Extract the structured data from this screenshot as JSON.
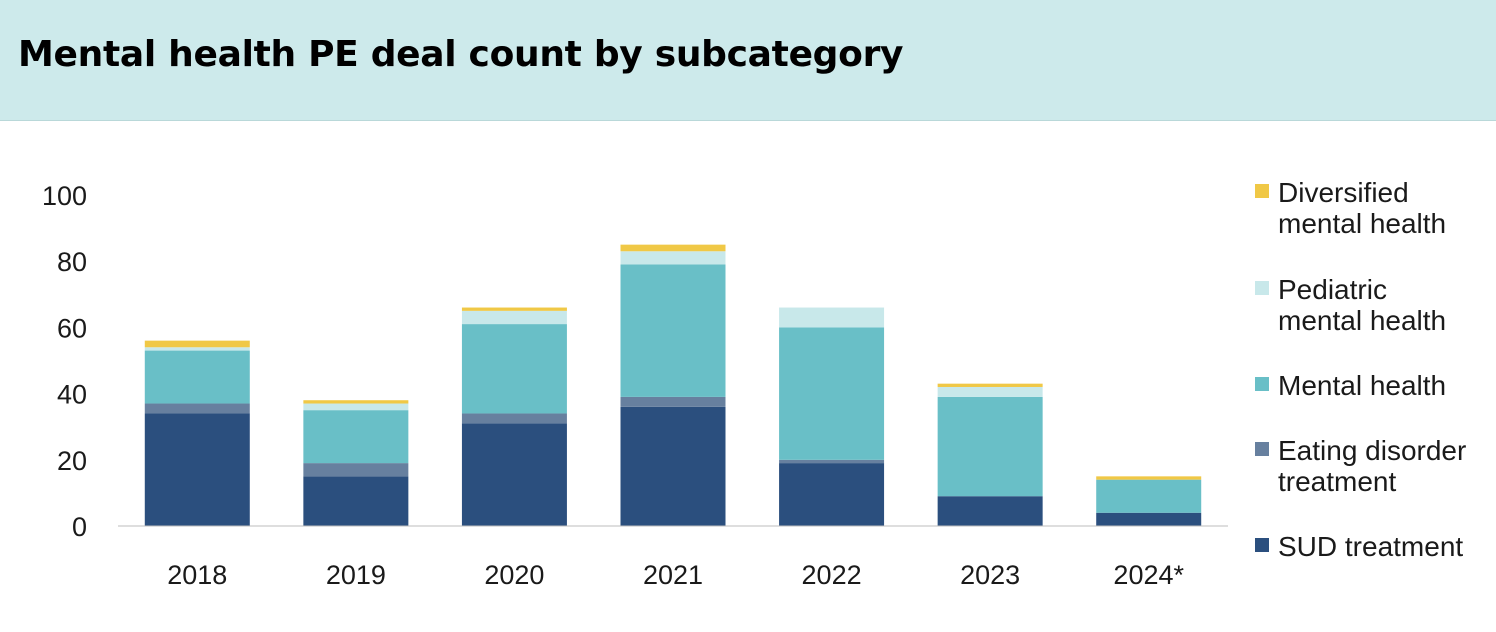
{
  "header": {
    "title": "Mental health PE deal count by subcategory"
  },
  "colors": {
    "header_bg": "#cdeaeb",
    "sud": "#2b4f7e",
    "eating": "#67809f",
    "mental": "#69bfc7",
    "pediatric": "#c8e8ea",
    "diversified": "#f0c846"
  },
  "chart_data": {
    "type": "bar",
    "stacked": true,
    "categories": [
      "2018",
      "2019",
      "2020",
      "2021",
      "2022",
      "2023",
      "2024*"
    ],
    "ylim": [
      0,
      100
    ],
    "yticks": [
      0,
      20,
      40,
      60,
      80,
      100
    ],
    "grid": false,
    "legend_position": "right",
    "series": [
      {
        "name": "SUD treatment",
        "color": "#2b4f7e",
        "values": [
          34,
          15,
          31,
          36,
          19,
          9,
          4
        ]
      },
      {
        "name": "Eating disorder treatment",
        "color": "#67809f",
        "values": [
          3,
          4,
          3,
          3,
          1,
          0,
          0
        ]
      },
      {
        "name": "Mental health",
        "color": "#69bfc7",
        "values": [
          16,
          16,
          27,
          40,
          40,
          30,
          10
        ]
      },
      {
        "name": "Pediatric mental health",
        "color": "#c8e8ea",
        "values": [
          1,
          2,
          4,
          4,
          6,
          3,
          0
        ]
      },
      {
        "name": "Diversified mental health",
        "color": "#f0c846",
        "values": [
          2,
          1,
          1,
          2,
          0,
          1,
          1
        ]
      }
    ]
  },
  "legend": [
    {
      "lines": [
        "Diversified",
        "mental health"
      ],
      "color": "#f0c846",
      "icon": "diversified-mental-health-swatch"
    },
    {
      "lines": [
        "Pediatric",
        "mental health"
      ],
      "color": "#c8e8ea",
      "icon": "pediatric-mental-health-swatch"
    },
    {
      "lines": [
        "Mental health"
      ],
      "color": "#69bfc7",
      "icon": "mental-health-swatch"
    },
    {
      "lines": [
        "Eating disorder",
        "treatment"
      ],
      "color": "#67809f",
      "icon": "eating-disorder-treatment-swatch"
    },
    {
      "lines": [
        "SUD treatment"
      ],
      "color": "#2b4f7e",
      "icon": "sud-treatment-swatch"
    }
  ]
}
